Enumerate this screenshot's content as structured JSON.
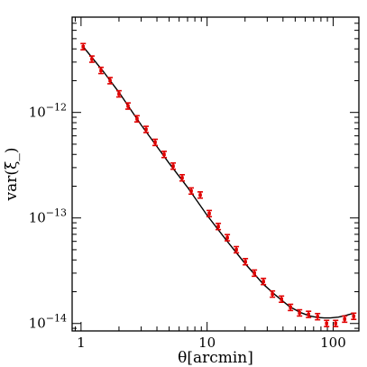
{
  "chart_data": {
    "type": "scatter",
    "title": "",
    "xlabel": "θ[arcmin]",
    "ylabel": "var(ξ_)",
    "xscale": "log",
    "yscale": "log",
    "xlim": [
      0.85,
      160
    ],
    "ylim": [
      8.5e-15,
      8e-12
    ],
    "grid": false,
    "legend": "none",
    "x_ticks": [
      {
        "value": 1,
        "label": "1"
      },
      {
        "value": 10,
        "label": "10"
      },
      {
        "value": 100,
        "label": "100"
      }
    ],
    "y_ticks": [
      {
        "value": 1e-14,
        "mantissa": "10",
        "exponent": "−14"
      },
      {
        "value": 1e-13,
        "mantissa": "10",
        "exponent": "−13"
      },
      {
        "value": 1e-12,
        "mantissa": "10",
        "exponent": "−12"
      }
    ],
    "series": [
      {
        "kind": "points",
        "color": "#e00000",
        "x": [
          1.04,
          1.22,
          1.44,
          1.7,
          2.0,
          2.36,
          2.78,
          3.28,
          3.87,
          4.56,
          5.38,
          6.34,
          7.48,
          8.82,
          10.4,
          12.27,
          14.47,
          17.06,
          20.12,
          23.73,
          27.98,
          33.0,
          38.91,
          45.89,
          54.12,
          63.82,
          75.26,
          88.75,
          104.66,
          123.43,
          145.56
        ],
        "y": [
          4.2e-12,
          3.2e-12,
          2.5e-12,
          2e-12,
          1.5e-12,
          1.15e-12,
          8.7e-13,
          6.9e-13,
          5.2e-13,
          4e-13,
          3.1e-13,
          2.4e-13,
          1.8e-13,
          1.65e-13,
          1.1e-13,
          8.3e-14,
          6.5e-14,
          5e-14,
          3.85e-14,
          3e-14,
          2.5e-14,
          1.9e-14,
          1.7e-14,
          1.42e-14,
          1.26e-14,
          1.22e-14,
          1.16e-14,
          1e-14,
          1e-14,
          1.1e-14,
          1.17e-14
        ],
        "yerr": [
          0.07,
          0.07,
          0.07,
          0.07,
          0.07,
          0.07,
          0.07,
          0.07,
          0.07,
          0.07,
          0.07,
          0.07,
          0.07,
          0.07,
          0.07,
          0.07,
          0.07,
          0.07,
          0.07,
          0.07,
          0.07,
          0.07,
          0.07,
          0.07,
          0.07,
          0.07,
          0.07,
          0.07,
          0.07,
          0.07,
          0.07
        ]
      },
      {
        "kind": "line",
        "color": "#000000",
        "x": [
          1.04,
          1.5,
          2.0,
          3.0,
          4.0,
          5.0,
          7.0,
          10.0,
          14.0,
          20.0,
          28.0,
          35.0,
          45.0,
          55.0,
          65.0,
          75.0,
          85.0,
          95.0,
          110.0,
          125.0,
          145.0
        ],
        "y": [
          4.2e-12,
          2.45e-12,
          1.55e-12,
          7.6e-13,
          4.75e-13,
          3.3e-13,
          1.95e-13,
          1.06e-13,
          6.3e-14,
          3.7e-14,
          2.35e-14,
          1.85e-14,
          1.45e-14,
          1.27e-14,
          1.18e-14,
          1.14e-14,
          1.13e-14,
          1.13e-14,
          1.15e-14,
          1.19e-14,
          1.25e-14
        ]
      }
    ]
  }
}
